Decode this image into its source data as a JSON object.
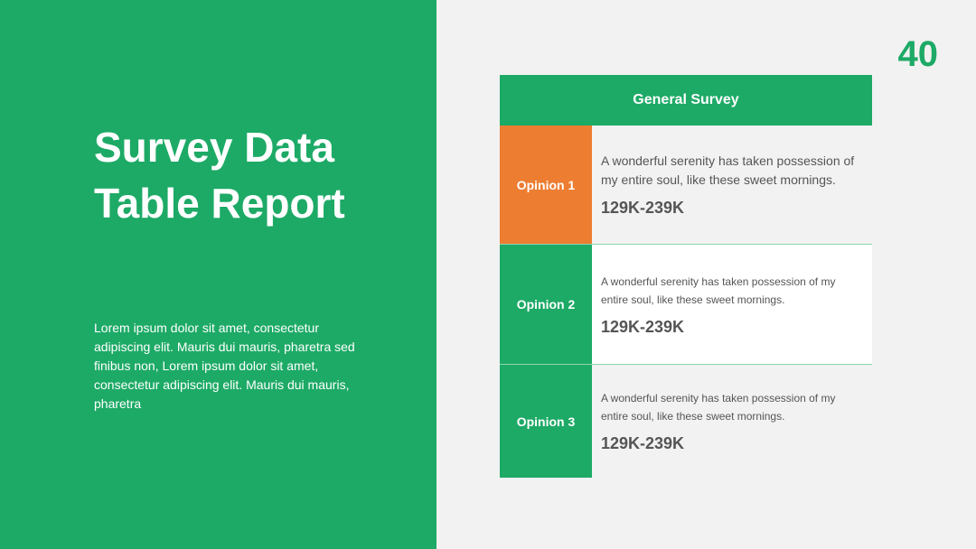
{
  "title": "Survey Data Table Report",
  "body": "Lorem ipsum dolor sit amet, consectetur adipiscing elit. Mauris dui mauris, pharetra sed finibus non, Lorem ipsum dolor sit amet, consectetur adipiscing elit. Mauris dui mauris, pharetra",
  "page_number": "40",
  "table": {
    "header": "General Survey",
    "rows": [
      {
        "label": "Opinion 1",
        "description": "A wonderful serenity has taken possession of my entire soul, like these sweet mornings.",
        "value": "129K-239K"
      },
      {
        "label": "Opinion 2",
        "description": "A wonderful serenity has taken possession of my entire soul, like these sweet mornings.",
        "value": "129K-239K"
      },
      {
        "label": "Opinion 3",
        "description": "A wonderful serenity has taken possession of my entire soul, like these sweet mornings.",
        "value": "129K-239K"
      }
    ]
  }
}
